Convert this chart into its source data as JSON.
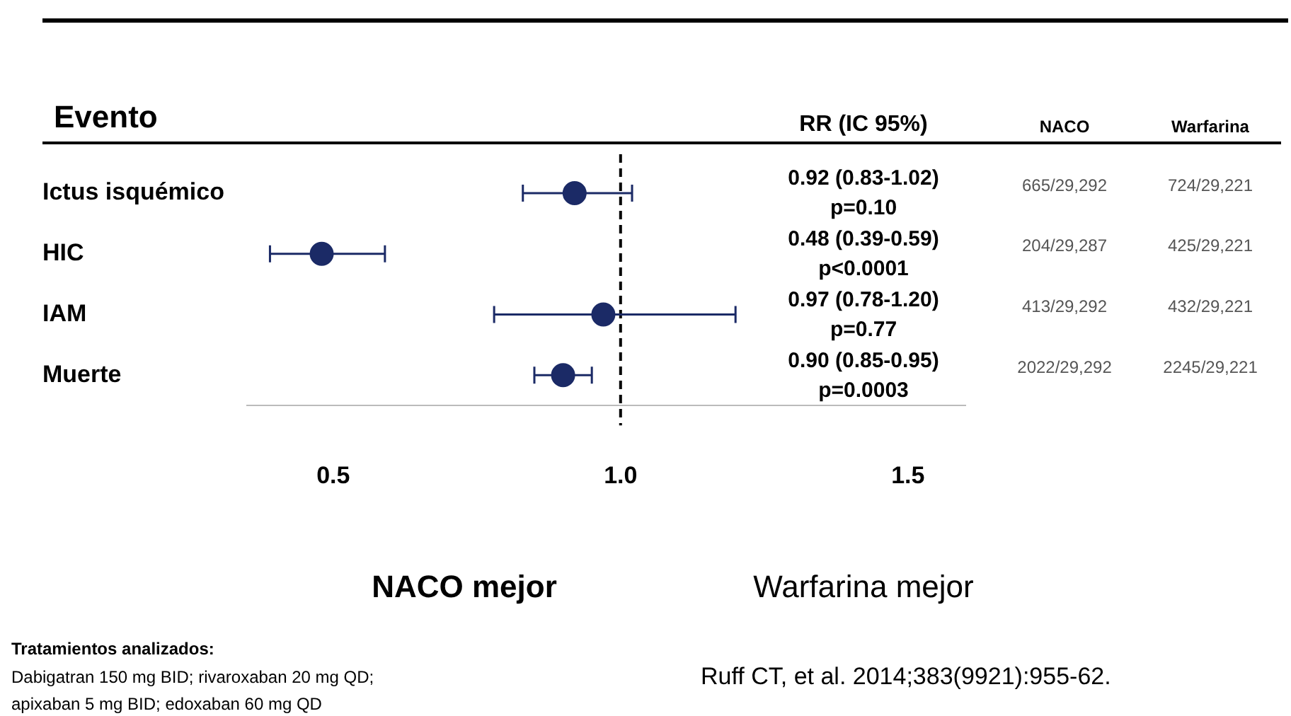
{
  "chart_data": {
    "type": "scatter",
    "orientation": "horizontal",
    "ylabel": "Evento",
    "categories": [
      "Ictus isquémico",
      "HIC",
      "IAM",
      "Muerte"
    ],
    "values": [
      0.92,
      0.48,
      0.97,
      0.9
    ],
    "errors": [
      [
        0.83,
        1.02
      ],
      [
        0.39,
        0.59
      ],
      [
        0.78,
        1.2
      ],
      [
        0.85,
        0.95
      ]
    ],
    "color": "#1b2a66",
    "marker": "circle",
    "xlim": [
      0.35,
      1.6
    ],
    "xticks": [
      {
        "value": 0.5,
        "label": "0.5"
      },
      {
        "value": 1,
        "label": "1.0"
      },
      {
        "value": 1.5,
        "label": "1.5"
      }
    ],
    "ref_lines": [
      {
        "axis": "x",
        "value": 1,
        "line_style": "dashed",
        "color": "#000000"
      }
    ],
    "annotations": [
      "RR (IC 95%)",
      "NACO",
      "Warfarina",
      "0.92 (0.83-1.02)\np=0.10",
      "665/29,292",
      "724/29,221",
      "0.48 (0.39-0.59)\np<0.0001",
      "204/29,287",
      "425/29,221",
      "0.97 (0.78-1.20)\np=0.77",
      "413/29,292",
      "432/29,221",
      "0.90 (0.85-0.95)\np=0.0003",
      "2022/29,292",
      "2245/29,221",
      "NACO mejor",
      "Warfarina mejor",
      "Tratamientos analizados:",
      "Dabigatran 150 mg BID; rivaroxaban 20 mg QD;",
      "apixaban 5 mg BID; edoxaban 60 mg QD",
      "Ruff CT, et al. 2014;383(9921):955-62."
    ]
  }
}
